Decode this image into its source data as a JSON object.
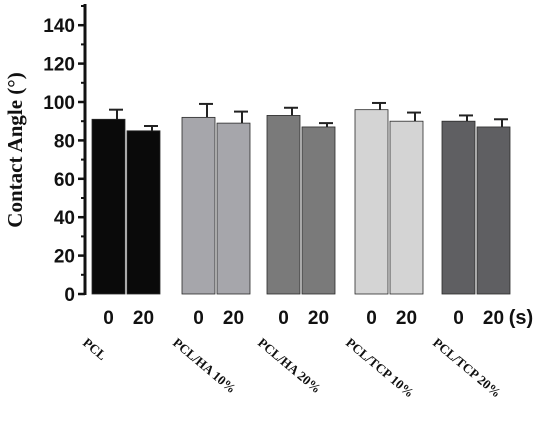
{
  "chart_data": {
    "type": "bar",
    "ylabel": "Contact Angle (°)",
    "xunit_label": "(s)",
    "ylim": [
      0,
      150
    ],
    "yticks": [
      "0",
      "20",
      "40",
      "60",
      "80",
      "100",
      "120",
      "140"
    ],
    "groups": [
      {
        "label": "PCL",
        "color": "#0a0a0a",
        "bars": [
          {
            "x": "0",
            "value": 91,
            "error": 5
          },
          {
            "x": "20",
            "value": 85,
            "error": 2.5
          }
        ]
      },
      {
        "label": "PCL/HA 10%",
        "color": "#a6a6ab",
        "bars": [
          {
            "x": "0",
            "value": 92,
            "error": 7
          },
          {
            "x": "20",
            "value": 89,
            "error": 6
          }
        ]
      },
      {
        "label": "PCL/HA 20%",
        "color": "#7a7a7a",
        "bars": [
          {
            "x": "0",
            "value": 93,
            "error": 4
          },
          {
            "x": "20",
            "value": 87,
            "error": 2
          }
        ]
      },
      {
        "label": "PCL/TCP 10%",
        "color": "#d4d4d4",
        "bars": [
          {
            "x": "0",
            "value": 96,
            "error": 3.5
          },
          {
            "x": "20",
            "value": 90,
            "error": 4.5
          }
        ]
      },
      {
        "label": "PCL/TCP 20%",
        "color": "#5f5f62",
        "bars": [
          {
            "x": "0",
            "value": 90,
            "error": 3
          },
          {
            "x": "20",
            "value": 87,
            "error": 4
          }
        ]
      }
    ]
  }
}
